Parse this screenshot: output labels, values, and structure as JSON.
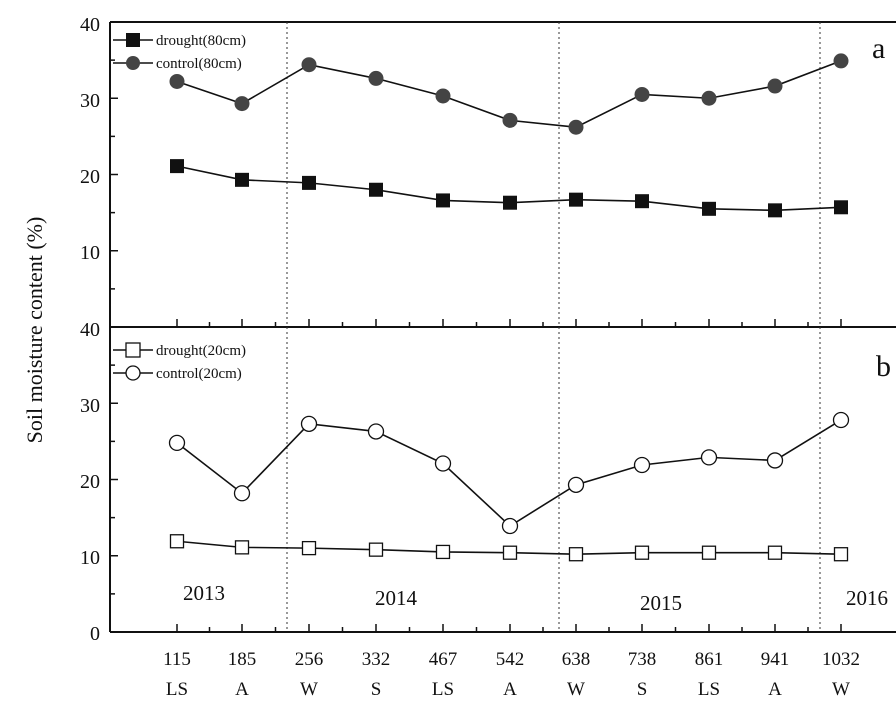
{
  "chart_data": [
    {
      "type": "line",
      "panel_label": "a",
      "ylabel": "Soil moisture content (%)",
      "ylim": [
        0,
        40
      ],
      "y_ticks": [
        "10",
        "20",
        "30",
        "40"
      ],
      "bottom_tick_label": "40",
      "categories": [
        "115",
        "185",
        "256",
        "332",
        "467",
        "542",
        "638",
        "738",
        "861",
        "941",
        "1032"
      ],
      "series": [
        {
          "name": "drought(80cm)",
          "marker": "filled-square",
          "values": [
            21.1,
            19.3,
            18.9,
            18.0,
            16.6,
            16.3,
            16.7,
            16.5,
            15.5,
            15.3,
            15.7
          ]
        },
        {
          "name": "control(80cm)",
          "marker": "filled-circle",
          "values": [
            32.2,
            29.3,
            34.4,
            32.6,
            30.3,
            27.1,
            26.2,
            30.5,
            30.0,
            31.6,
            34.9
          ]
        }
      ],
      "legend_position": "top-left",
      "colors": {
        "drought": "#111111",
        "control": "#444444"
      }
    },
    {
      "type": "line",
      "panel_label": "b",
      "ylim": [
        0,
        40
      ],
      "y_ticks": [
        "0",
        "10",
        "20",
        "30"
      ],
      "categories": [
        "115",
        "185",
        "256",
        "332",
        "467",
        "542",
        "638",
        "738",
        "861",
        "941",
        "1032"
      ],
      "season_labels": [
        "LS",
        "A",
        "W",
        "S",
        "LS",
        "A",
        "W",
        "S",
        "LS",
        "A",
        "W"
      ],
      "series": [
        {
          "name": "drought(20cm)",
          "marker": "open-square",
          "values": [
            11.9,
            11.1,
            11.0,
            10.8,
            10.5,
            10.4,
            10.2,
            10.4,
            10.4,
            10.4,
            10.2
          ]
        },
        {
          "name": "control(20cm)",
          "marker": "open-circle",
          "values": [
            24.8,
            18.2,
            27.3,
            26.3,
            22.1,
            13.9,
            19.3,
            21.9,
            22.9,
            22.5,
            27.8
          ]
        }
      ],
      "legend_position": "top-left",
      "year_labels": [
        "2013",
        "2014",
        "2015",
        "2016"
      ]
    }
  ]
}
